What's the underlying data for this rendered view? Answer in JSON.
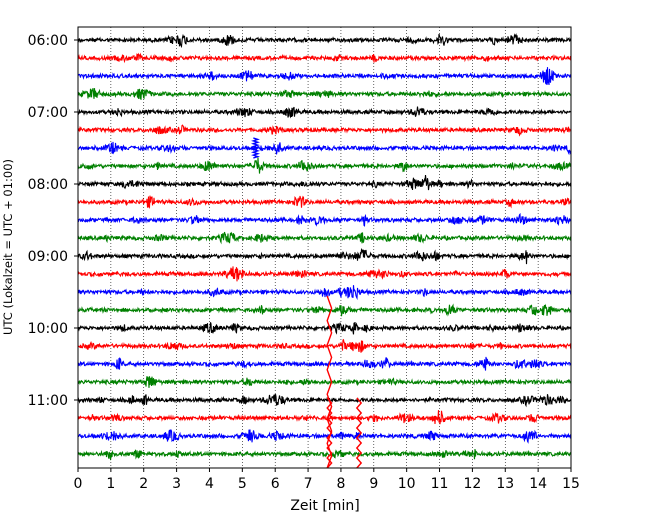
{
  "chart_data": {
    "type": "line",
    "subtype": "helicorder-seismogram",
    "title": "",
    "xlabel": "Zeit  [min]",
    "ylabel": "UTC (Lokalzeit = UTC + 01:00)",
    "xlim": [
      0,
      15
    ],
    "x_ticks": [
      "0",
      "1",
      "2",
      "3",
      "4",
      "5",
      "6",
      "7",
      "8",
      "9",
      "10",
      "11",
      "12",
      "13",
      "14",
      "15"
    ],
    "y_ticks": [
      "06:00",
      "07:00",
      "08:00",
      "09:00",
      "10:00",
      "11:00"
    ],
    "vertical_grid": "dotted, every 1 min",
    "trace_interval_min": 15,
    "trace_colors": [
      "#000000",
      "#ff0000",
      "#0000ff",
      "#008000"
    ],
    "trace_start_times": [
      "06:00",
      "06:15",
      "06:30",
      "06:45",
      "07:00",
      "07:15",
      "07:30",
      "07:45",
      "08:00",
      "08:15",
      "08:30",
      "08:45",
      "09:00",
      "09:15",
      "09:30",
      "09:45",
      "10:00",
      "10:15",
      "10:30",
      "10:45",
      "11:00",
      "11:15",
      "11:30",
      "11:45"
    ],
    "notable_events": [
      {
        "trace_start": "07:30",
        "minute": 5.4,
        "note": "spike"
      },
      {
        "trace_start": "10:15",
        "minute": 7.65,
        "note": "large event, clipped"
      },
      {
        "trace_start": "11:15",
        "minute": 7.65,
        "note": "large event, clipped"
      },
      {
        "trace_start": "11:15",
        "minute": 8.55,
        "note": "large event, clipped"
      }
    ]
  }
}
